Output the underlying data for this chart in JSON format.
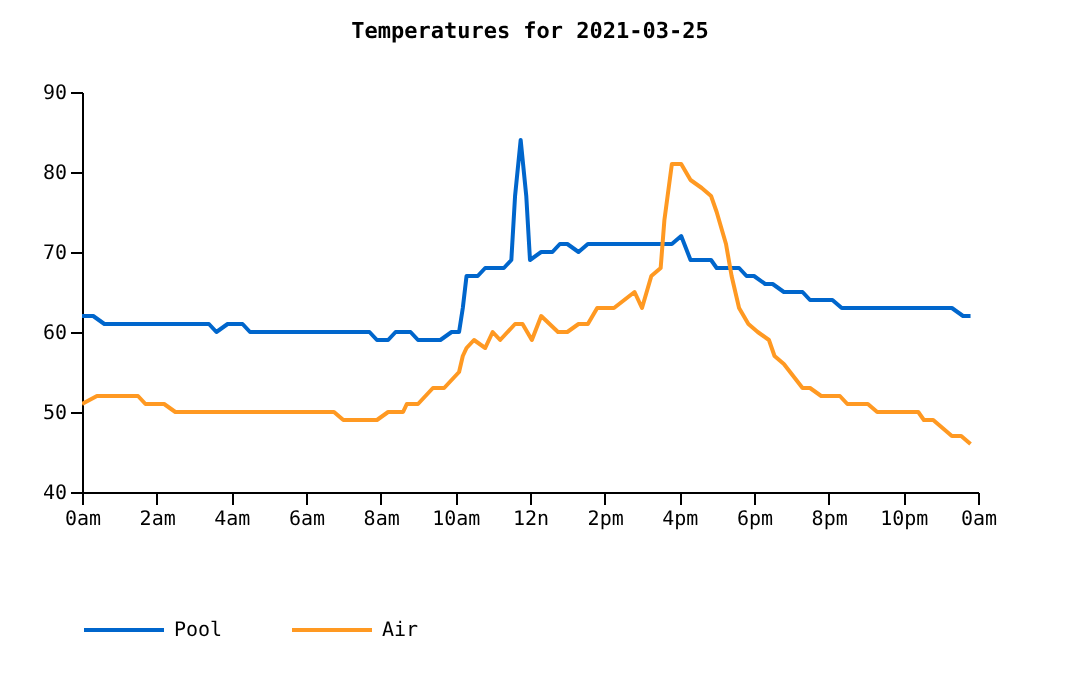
{
  "chart_data": {
    "type": "line",
    "title": "Temperatures for 2021-03-25",
    "xlim": [
      "2021-03-25T00:00",
      "2021-03-26T00:00"
    ],
    "xticks": [
      {
        "value": "2021-03-25T00:00",
        "label": "0am"
      },
      {
        "value": "2021-03-25T02:00",
        "label": "2am"
      },
      {
        "value": "2021-03-25T04:00",
        "label": "4am"
      },
      {
        "value": "2021-03-25T06:00",
        "label": "6am"
      },
      {
        "value": "2021-03-25T08:00",
        "label": "8am"
      },
      {
        "value": "2021-03-25T10:00",
        "label": "10am"
      },
      {
        "value": "2021-03-25T12:00",
        "label": "12n"
      },
      {
        "value": "2021-03-25T14:00",
        "label": "2pm"
      },
      {
        "value": "2021-03-25T16:00",
        "label": "4pm"
      },
      {
        "value": "2021-03-25T18:00",
        "label": "6pm"
      },
      {
        "value": "2021-03-25T20:00",
        "label": "8pm"
      },
      {
        "value": "2021-03-25T22:00",
        "label": "10pm"
      },
      {
        "value": "2021-03-26T00:00",
        "label": "0am"
      }
    ],
    "ylim": [
      40,
      90
    ],
    "yticks": [
      40,
      50,
      60,
      70,
      80,
      90
    ],
    "grid": false,
    "legend": "bottom",
    "marker": "none",
    "line_style": "solid",
    "series": [
      {
        "name": "Pool",
        "color": "#0066cc",
        "x": [
          "2021-03-25T00:00",
          "2021-03-25T00:18",
          "2021-03-25T00:36",
          "2021-03-25T03:24",
          "2021-03-25T03:36",
          "2021-03-25T03:54",
          "2021-03-25T04:18",
          "2021-03-25T04:30",
          "2021-03-25T07:42",
          "2021-03-25T07:54",
          "2021-03-25T08:12",
          "2021-03-25T08:24",
          "2021-03-25T08:48",
          "2021-03-25T09:00",
          "2021-03-25T09:36",
          "2021-03-25T09:54",
          "2021-03-25T10:06",
          "2021-03-25T10:12",
          "2021-03-25T10:18",
          "2021-03-25T10:36",
          "2021-03-25T10:48",
          "2021-03-25T11:18",
          "2021-03-25T11:30",
          "2021-03-25T11:36",
          "2021-03-25T11:45",
          "2021-03-25T11:54",
          "2021-03-25T12:00",
          "2021-03-25T12:18",
          "2021-03-25T12:36",
          "2021-03-25T12:48",
          "2021-03-25T13:00",
          "2021-03-25T13:18",
          "2021-03-25T13:33",
          "2021-03-25T15:48",
          "2021-03-25T16:03",
          "2021-03-25T16:18",
          "2021-03-25T16:51",
          "2021-03-25T17:00",
          "2021-03-25T17:36",
          "2021-03-25T17:48",
          "2021-03-25T18:00",
          "2021-03-25T18:18",
          "2021-03-25T18:30",
          "2021-03-25T18:48",
          "2021-03-25T19:18",
          "2021-03-25T19:30",
          "2021-03-25T20:06",
          "2021-03-25T20:21",
          "2021-03-25T23:18",
          "2021-03-25T23:36",
          "2021-03-25T23:48"
        ],
        "values": [
          62,
          62,
          61,
          61,
          60,
          61,
          61,
          60,
          60,
          59,
          59,
          60,
          60,
          59,
          59,
          60,
          60,
          63,
          67,
          67,
          68,
          68,
          69,
          77,
          84,
          77,
          69,
          70,
          70,
          71,
          71,
          70,
          71,
          71,
          72,
          69,
          69,
          68,
          68,
          67,
          67,
          66,
          66,
          65,
          65,
          64,
          64,
          63,
          63,
          62,
          62
        ]
      },
      {
        "name": "Air",
        "color": "#ff9922",
        "x": [
          "2021-03-25T00:00",
          "2021-03-25T00:24",
          "2021-03-25T01:30",
          "2021-03-25T01:42",
          "2021-03-25T02:12",
          "2021-03-25T02:30",
          "2021-03-25T06:45",
          "2021-03-25T07:00",
          "2021-03-25T07:54",
          "2021-03-25T08:12",
          "2021-03-25T08:36",
          "2021-03-25T08:42",
          "2021-03-25T09:00",
          "2021-03-25T09:12",
          "2021-03-25T09:24",
          "2021-03-25T09:42",
          "2021-03-25T09:54",
          "2021-03-25T10:06",
          "2021-03-25T10:12",
          "2021-03-25T10:18",
          "2021-03-25T10:30",
          "2021-03-25T10:48",
          "2021-03-25T11:00",
          "2021-03-25T11:12",
          "2021-03-25T11:36",
          "2021-03-25T11:48",
          "2021-03-25T12:03",
          "2021-03-25T12:18",
          "2021-03-25T12:45",
          "2021-03-25T13:00",
          "2021-03-25T13:18",
          "2021-03-25T13:33",
          "2021-03-25T13:48",
          "2021-03-25T14:15",
          "2021-03-25T14:48",
          "2021-03-25T15:00",
          "2021-03-25T15:15",
          "2021-03-25T15:30",
          "2021-03-25T15:36",
          "2021-03-25T15:48",
          "2021-03-25T16:03",
          "2021-03-25T16:18",
          "2021-03-25T16:36",
          "2021-03-25T16:51",
          "2021-03-25T17:00",
          "2021-03-25T17:15",
          "2021-03-25T17:24",
          "2021-03-25T17:36",
          "2021-03-25T17:51",
          "2021-03-25T18:06",
          "2021-03-25T18:24",
          "2021-03-25T18:33",
          "2021-03-25T18:48",
          "2021-03-25T19:18",
          "2021-03-25T19:30",
          "2021-03-25T19:48",
          "2021-03-25T20:18",
          "2021-03-25T20:30",
          "2021-03-25T21:03",
          "2021-03-25T21:18",
          "2021-03-25T22:24",
          "2021-03-25T22:33",
          "2021-03-25T22:48",
          "2021-03-25T23:18",
          "2021-03-25T23:33",
          "2021-03-25T23:48"
        ],
        "values": [
          51,
          52,
          52,
          51,
          51,
          50,
          50,
          49,
          49,
          50,
          50,
          51,
          51,
          52,
          53,
          53,
          54,
          55,
          57,
          58,
          59,
          58,
          60,
          59,
          61,
          61,
          59,
          62,
          60,
          60,
          61,
          61,
          63,
          63,
          65,
          63,
          67,
          68,
          74,
          81,
          81,
          79,
          78,
          77,
          75,
          71,
          67,
          63,
          61,
          60,
          59,
          57,
          56,
          53,
          53,
          52,
          52,
          51,
          51,
          50,
          50,
          49,
          49,
          47,
          47,
          46
        ]
      }
    ]
  }
}
